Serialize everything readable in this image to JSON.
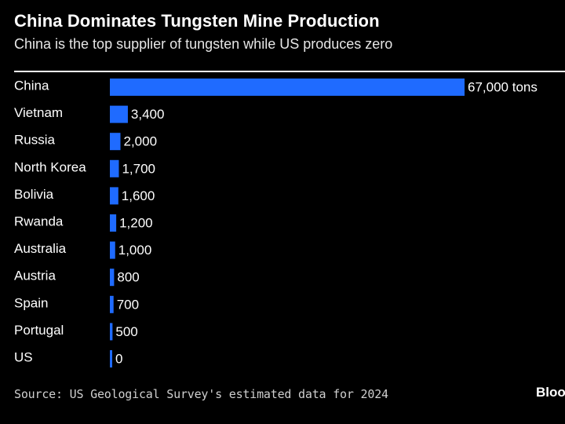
{
  "header": {
    "title": "China Dominates Tungsten Mine Production",
    "subtitle": "China is the top supplier of tungsten while US produces zero"
  },
  "footer": {
    "source": "Source: US Geological Survey's estimated data for 2024",
    "logo": "Bloomberg"
  },
  "colors": {
    "background": "#000000",
    "bar": "#1f6bff",
    "text": "#ffffff"
  },
  "chart_data": {
    "type": "bar",
    "orientation": "horizontal",
    "title": "China Dominates Tungsten Mine Production",
    "subtitle": "China is the top supplier of tungsten while US produces zero",
    "xlabel": "",
    "ylabel": "",
    "unit": "tons",
    "xlim": [
      0,
      67000
    ],
    "grid": false,
    "legend": "none",
    "categories": [
      "China",
      "Vietnam",
      "Russia",
      "North Korea",
      "Bolivia",
      "Rwanda",
      "Australia",
      "Austria",
      "Spain",
      "Portugal",
      "US"
    ],
    "values": [
      67000,
      3400,
      2000,
      1700,
      1600,
      1200,
      1000,
      800,
      700,
      500,
      0
    ],
    "value_labels": [
      "67,000 tons",
      "3,400",
      "2,000",
      "1,700",
      "1,600",
      "1,200",
      "1,000",
      "800",
      "700",
      "500",
      "0"
    ]
  }
}
